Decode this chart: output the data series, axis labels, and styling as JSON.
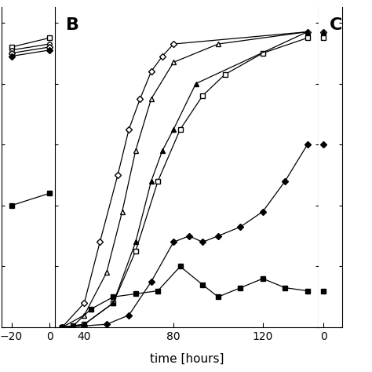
{
  "title_B": "B",
  "title_C": "C",
  "xlabel": "time [hours]",
  "background_color": "#ffffff",
  "panel_A": {
    "x": [
      -20,
      0
    ],
    "series": {
      "open_square": [
        0.92,
        0.95
      ],
      "open_circle": [
        0.91,
        0.93
      ],
      "open_diamond": [
        0.9,
        0.92
      ],
      "filled_diamond": [
        0.89,
        0.91
      ],
      "filled_square": [
        0.4,
        0.44
      ]
    }
  },
  "panel_B": {
    "open_diamond": {
      "x": [
        30,
        40,
        47,
        55,
        60,
        65,
        70,
        75,
        80,
        140
      ],
      "y": [
        0,
        0.08,
        0.28,
        0.5,
        0.65,
        0.75,
        0.84,
        0.89,
        0.93,
        0.97
      ]
    },
    "open_triangle": {
      "x": [
        30,
        40,
        50,
        57,
        63,
        70,
        80,
        100,
        140
      ],
      "y": [
        0,
        0.04,
        0.18,
        0.38,
        0.58,
        0.75,
        0.87,
        0.93,
        0.97
      ]
    },
    "open_square": {
      "x": [
        30,
        40,
        53,
        63,
        73,
        83,
        93,
        103,
        120,
        140
      ],
      "y": [
        0,
        0.01,
        0.08,
        0.25,
        0.48,
        0.65,
        0.76,
        0.83,
        0.9,
        0.95
      ]
    },
    "filled_triangle": {
      "x": [
        30,
        40,
        53,
        63,
        70,
        75,
        80,
        90,
        140
      ],
      "y": [
        0,
        0.01,
        0.08,
        0.28,
        0.48,
        0.58,
        0.65,
        0.8,
        0.97
      ]
    },
    "filled_diamond": {
      "x": [
        30,
        40,
        50,
        60,
        70,
        80,
        87,
        93,
        100,
        110,
        120,
        130,
        140
      ],
      "y": [
        0,
        0.005,
        0.01,
        0.04,
        0.15,
        0.28,
        0.3,
        0.28,
        0.3,
        0.33,
        0.38,
        0.48,
        0.6
      ]
    },
    "filled_square": {
      "x": [
        30,
        35,
        43,
        53,
        63,
        73,
        83,
        93,
        100,
        110,
        120,
        130,
        140
      ],
      "y": [
        0,
        0.005,
        0.06,
        0.1,
        0.11,
        0.12,
        0.2,
        0.14,
        0.1,
        0.13,
        0.16,
        0.13,
        0.12
      ]
    }
  },
  "ylim": [
    0,
    1.05
  ],
  "xlim_B": [
    27,
    145
  ],
  "xlim_A": [
    -25,
    3
  ],
  "ytick_positions": [
    0.0,
    0.2,
    0.4,
    0.6,
    0.8,
    1.0
  ],
  "B_xticks": [
    40,
    80,
    120
  ],
  "A_xticks": [
    -20,
    0
  ],
  "C_xtick": 0,
  "markersize": 4,
  "linewidth": 0.9
}
